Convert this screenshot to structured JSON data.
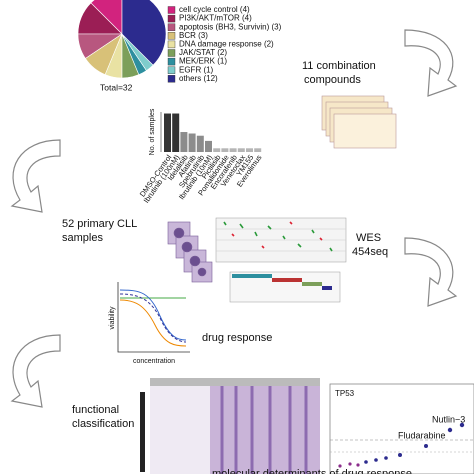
{
  "pie": {
    "labels": [
      "cell cycle control (4)",
      "PI3K/AKT/mTOR (4)",
      "apoptosis (BH3, Survivin) (3)",
      "BCR (3)",
      "DNA damage response (2)",
      "JAK/STAT (2)",
      "MEK/ERK (1)",
      "EGFR (1)",
      "others (12)"
    ],
    "values": [
      4,
      4,
      3,
      3,
      2,
      2,
      1,
      1,
      12
    ],
    "colors": [
      "#d2237e",
      "#9b1e55",
      "#b8577f",
      "#d8c178",
      "#e9e2a3",
      "#7c9f5a",
      "#2d8f9f",
      "#7ecccc",
      "#2c2b8e"
    ],
    "total_label": "Total=32"
  },
  "combination_label": [
    "11 combination",
    "compounds"
  ],
  "bar": {
    "ylabel": "No. of samples",
    "categories": [
      "DMSO-Control",
      "Ibrutinib (100nM)",
      "Idelalisib",
      "Afatinib",
      "Spebrutinib",
      "Ibrutinib (10nM)",
      "Pictilisib",
      "Pomalidomide",
      "Encorafenib",
      "Venetoclax",
      "YM155",
      "Everolimus"
    ],
    "values": [
      52,
      52,
      27,
      25,
      22,
      15,
      5,
      5,
      5,
      5,
      5,
      5
    ],
    "colors": [
      "#333333",
      "#333333",
      "#8c8c8c",
      "#8c8c8c",
      "#8c8c8c",
      "#8c8c8c",
      "#b5b5b5",
      "#b5b5b5",
      "#b5b5b5",
      "#b5b5b5",
      "#b5b5b5",
      "#b5b5b5"
    ]
  },
  "samples_label": [
    "52 primary CLL",
    "samples"
  ],
  "seq_label": [
    "WES",
    "454seq"
  ],
  "response": {
    "title": "drug response",
    "ylabel": "viability",
    "xlabel": "concentration"
  },
  "classification_label": [
    "functional",
    "classification"
  ],
  "scatter": {
    "title": "TP53",
    "annotations": [
      "Nutlin−3",
      "Fludarabine"
    ]
  },
  "footer": "molecular determinants of drug response"
}
